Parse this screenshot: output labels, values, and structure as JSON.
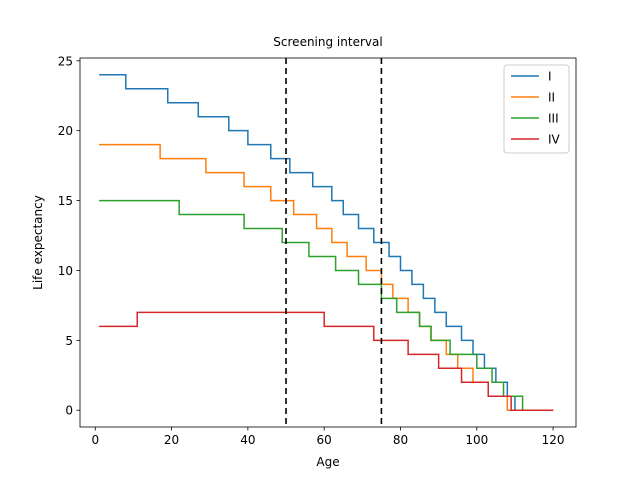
{
  "chart_data": {
    "type": "line",
    "title": "Screening interval",
    "xlabel": "Age",
    "ylabel": "Life expectancy",
    "xlim": [
      -4,
      126
    ],
    "ylim": [
      -1.2,
      25.2
    ],
    "xticks": [
      0,
      20,
      40,
      60,
      80,
      100,
      120
    ],
    "yticks": [
      0,
      5,
      10,
      15,
      20,
      25
    ],
    "grid": false,
    "legend_position": "top-right",
    "vlines": [
      {
        "x": 50,
        "style": "dashed",
        "color": "#000000"
      },
      {
        "x": 75,
        "style": "dashed",
        "color": "#000000"
      }
    ],
    "series": [
      {
        "name": "I",
        "color": "#1f77b4",
        "steps": [
          [
            1,
            24
          ],
          [
            8,
            23
          ],
          [
            19,
            22
          ],
          [
            27,
            21
          ],
          [
            35,
            20
          ],
          [
            40,
            19
          ],
          [
            46,
            18
          ],
          [
            50,
            18
          ],
          [
            51,
            17
          ],
          [
            57,
            16
          ],
          [
            62,
            15
          ],
          [
            65,
            14
          ],
          [
            69,
            13
          ],
          [
            73,
            12
          ],
          [
            77,
            11
          ],
          [
            80,
            10
          ],
          [
            83,
            9
          ],
          [
            86,
            8
          ],
          [
            89,
            7
          ],
          [
            92,
            6
          ],
          [
            96,
            5
          ],
          [
            99,
            4
          ],
          [
            102,
            3
          ],
          [
            105,
            2
          ],
          [
            108,
            1
          ],
          [
            110,
            0
          ],
          [
            120,
            0
          ]
        ]
      },
      {
        "name": "II",
        "color": "#ff7f0e",
        "steps": [
          [
            1,
            19
          ],
          [
            17,
            18
          ],
          [
            29,
            17
          ],
          [
            39,
            16
          ],
          [
            46,
            15
          ],
          [
            52,
            14
          ],
          [
            58,
            13
          ],
          [
            62,
            12
          ],
          [
            66,
            11
          ],
          [
            71,
            10
          ],
          [
            75,
            9
          ],
          [
            78,
            8
          ],
          [
            82,
            7
          ],
          [
            85,
            6
          ],
          [
            88,
            5
          ],
          [
            92,
            4
          ],
          [
            95,
            3
          ],
          [
            99,
            2
          ],
          [
            103,
            1
          ],
          [
            108,
            0
          ],
          [
            120,
            0
          ]
        ]
      },
      {
        "name": "III",
        "color": "#2ca02c",
        "steps": [
          [
            1,
            15
          ],
          [
            22,
            14
          ],
          [
            39,
            13
          ],
          [
            49,
            12
          ],
          [
            56,
            11
          ],
          [
            63,
            10
          ],
          [
            69,
            9
          ],
          [
            75,
            8
          ],
          [
            79,
            7
          ],
          [
            85,
            6
          ],
          [
            88,
            5
          ],
          [
            93,
            4
          ],
          [
            100,
            3
          ],
          [
            104,
            2
          ],
          [
            107,
            1
          ],
          [
            112,
            0
          ],
          [
            120,
            0
          ]
        ]
      },
      {
        "name": "IV",
        "color": "#d62728",
        "steps": [
          [
            1,
            6
          ],
          [
            11,
            7
          ],
          [
            60,
            6
          ],
          [
            73,
            5
          ],
          [
            82,
            4
          ],
          [
            90,
            3
          ],
          [
            96,
            2
          ],
          [
            103,
            1
          ],
          [
            109,
            0
          ],
          [
            120,
            0
          ]
        ]
      }
    ]
  }
}
